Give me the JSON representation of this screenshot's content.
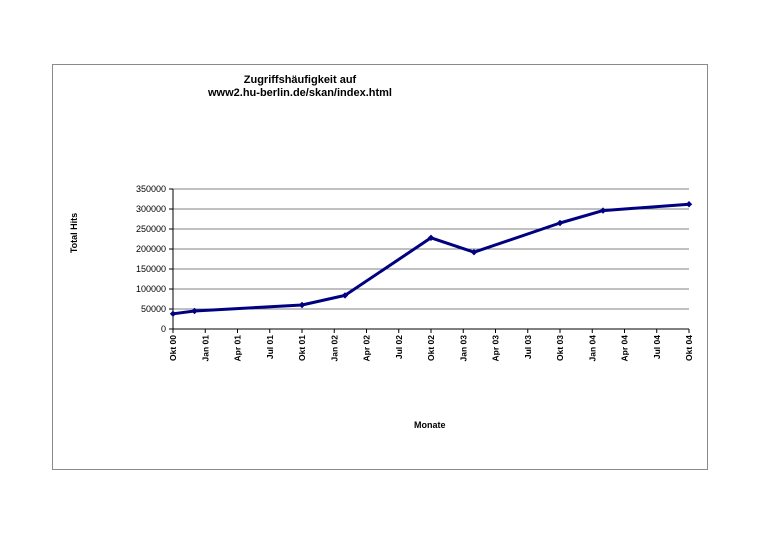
{
  "chart_data": {
    "type": "line",
    "title": [
      "Zugriffshäufigkeit auf",
      "www2.hu-berlin.de/skan/index.html"
    ],
    "xlabel": "Monate",
    "ylabel": "Total Hits",
    "categories": [
      "Okt 00",
      "Jan 01",
      "Apr 01",
      "Jul 01",
      "Okt 01",
      "Jan 02",
      "Apr 02",
      "Jul 02",
      "Okt 02",
      "Jan 03",
      "Apr 03",
      "Jul 03",
      "Okt 03",
      "Jan 04",
      "Apr 04",
      "Jul 04",
      "Okt 04"
    ],
    "ylim": [
      0,
      350000
    ],
    "yticks": [
      0,
      50000,
      100000,
      150000,
      200000,
      250000,
      300000,
      350000
    ],
    "grid": true,
    "legend": "none",
    "series": [
      {
        "points": [
          {
            "x": "Okt 00",
            "y": 38000
          },
          {
            "x": "Dez 00",
            "y": 45000
          },
          {
            "x": "Okt 01",
            "y": 60000
          },
          {
            "x": "Feb 02",
            "y": 84000
          },
          {
            "x": "Okt 02",
            "y": 228000
          },
          {
            "x": "Feb 03",
            "y": 192000
          },
          {
            "x": "Okt 03",
            "y": 265000
          },
          {
            "x": "Feb 04",
            "y": 296000
          },
          {
            "x": "Okt 04",
            "y": 312000
          }
        ],
        "color": "#000080"
      }
    ]
  }
}
